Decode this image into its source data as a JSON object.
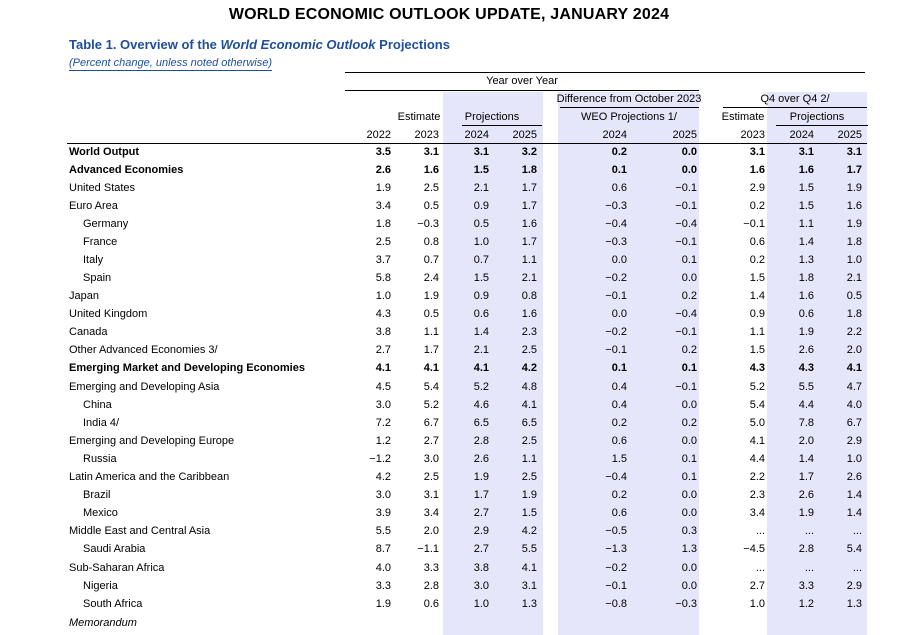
{
  "page": {
    "title": "WORLD ECONOMIC OUTLOOK UPDATE, JANUARY 2024",
    "table_title_prefix": "Table 1. Overview of the ",
    "table_title_italic": "World Economic Outlook",
    "table_title_suffix": " Projections",
    "units": "(Percent change, unless noted otherwise)"
  },
  "header": {
    "year_over_year": "Year over Year",
    "estimate": "Estimate",
    "projections": "Projections",
    "difference_line1": "Difference from October 2023",
    "difference_line2": "WEO Projections 1/",
    "q4_over_q4": "Q4 over Q4 2/",
    "q4_estimate": "Estimate",
    "q4_projections": "Projections",
    "years": [
      "2022",
      "2023",
      "2024",
      "2025",
      "2024",
      "2025",
      "2023",
      "2024",
      "2025"
    ]
  },
  "rows": [
    {
      "label": "World Output",
      "bold": true,
      "indent": false,
      "values": [
        "3.5",
        "3.1",
        "3.1",
        "3.2",
        "0.2",
        "0.0",
        "3.1",
        "3.1",
        "3.1"
      ]
    },
    {
      "label": "Advanced Economies",
      "bold": true,
      "indent": false,
      "values": [
        "2.6",
        "1.6",
        "1.5",
        "1.8",
        "0.1",
        "0.0",
        "1.6",
        "1.6",
        "1.7"
      ]
    },
    {
      "label": "United States",
      "bold": false,
      "indent": false,
      "values": [
        "1.9",
        "2.5",
        "2.1",
        "1.7",
        "0.6",
        "−0.1",
        "2.9",
        "1.5",
        "1.9"
      ]
    },
    {
      "label": "Euro Area",
      "bold": false,
      "indent": false,
      "values": [
        "3.4",
        "0.5",
        "0.9",
        "1.7",
        "−0.3",
        "−0.1",
        "0.2",
        "1.5",
        "1.6"
      ]
    },
    {
      "label": "Germany",
      "bold": false,
      "indent": true,
      "values": [
        "1.8",
        "−0.3",
        "0.5",
        "1.6",
        "−0.4",
        "−0.4",
        "−0.1",
        "1.1",
        "1.9"
      ]
    },
    {
      "label": "France",
      "bold": false,
      "indent": true,
      "values": [
        "2.5",
        "0.8",
        "1.0",
        "1.7",
        "−0.3",
        "−0.1",
        "0.6",
        "1.4",
        "1.8"
      ]
    },
    {
      "label": "Italy",
      "bold": false,
      "indent": true,
      "values": [
        "3.7",
        "0.7",
        "0.7",
        "1.1",
        "0.0",
        "0.1",
        "0.2",
        "1.3",
        "1.0"
      ]
    },
    {
      "label": "Spain",
      "bold": false,
      "indent": true,
      "values": [
        "5.8",
        "2.4",
        "1.5",
        "2.1",
        "−0.2",
        "0.0",
        "1.5",
        "1.8",
        "2.1"
      ]
    },
    {
      "label": "Japan",
      "bold": false,
      "indent": false,
      "values": [
        "1.0",
        "1.9",
        "0.9",
        "0.8",
        "−0.1",
        "0.2",
        "1.4",
        "1.6",
        "0.5"
      ]
    },
    {
      "label": "United Kingdom",
      "bold": false,
      "indent": false,
      "values": [
        "4.3",
        "0.5",
        "0.6",
        "1.6",
        "0.0",
        "−0.4",
        "0.9",
        "0.6",
        "1.8"
      ]
    },
    {
      "label": "Canada",
      "bold": false,
      "indent": false,
      "values": [
        "3.8",
        "1.1",
        "1.4",
        "2.3",
        "−0.2",
        "−0.1",
        "1.1",
        "1.9",
        "2.2"
      ]
    },
    {
      "label": "Other Advanced Economies 3/",
      "bold": false,
      "indent": false,
      "values": [
        "2.7",
        "1.7",
        "2.1",
        "2.5",
        "−0.1",
        "0.2",
        "1.5",
        "2.6",
        "2.0"
      ]
    },
    {
      "label": "Emerging Market and Developing Economies",
      "bold": true,
      "indent": false,
      "values": [
        "4.1",
        "4.1",
        "4.1",
        "4.2",
        "0.1",
        "0.1",
        "4.3",
        "4.3",
        "4.1"
      ]
    },
    {
      "label": "Emerging and Developing Asia",
      "bold": false,
      "indent": false,
      "values": [
        "4.5",
        "5.4",
        "5.2",
        "4.8",
        "0.4",
        "−0.1",
        "5.2",
        "5.5",
        "4.7"
      ]
    },
    {
      "label": "China",
      "bold": false,
      "indent": true,
      "values": [
        "3.0",
        "5.2",
        "4.6",
        "4.1",
        "0.4",
        "0.0",
        "5.4",
        "4.4",
        "4.0"
      ]
    },
    {
      "label": "India 4/",
      "bold": false,
      "indent": true,
      "values": [
        "7.2",
        "6.7",
        "6.5",
        "6.5",
        "0.2",
        "0.2",
        "5.0",
        "7.8",
        "6.7"
      ]
    },
    {
      "label": "Emerging and Developing Europe",
      "bold": false,
      "indent": false,
      "values": [
        "1.2",
        "2.7",
        "2.8",
        "2.5",
        "0.6",
        "0.0",
        "4.1",
        "2.0",
        "2.9"
      ]
    },
    {
      "label": "Russia",
      "bold": false,
      "indent": true,
      "values": [
        "−1.2",
        "3.0",
        "2.6",
        "1.1",
        "1.5",
        "0.1",
        "4.4",
        "1.4",
        "1.0"
      ]
    },
    {
      "label": "Latin America and the Caribbean",
      "bold": false,
      "indent": false,
      "values": [
        "4.2",
        "2.5",
        "1.9",
        "2.5",
        "−0.4",
        "0.1",
        "2.2",
        "1.7",
        "2.6"
      ]
    },
    {
      "label": "Brazil",
      "bold": false,
      "indent": true,
      "values": [
        "3.0",
        "3.1",
        "1.7",
        "1.9",
        "0.2",
        "0.0",
        "2.3",
        "2.6",
        "1.4"
      ]
    },
    {
      "label": "Mexico",
      "bold": false,
      "indent": true,
      "values": [
        "3.9",
        "3.4",
        "2.7",
        "1.5",
        "0.6",
        "0.0",
        "3.4",
        "1.9",
        "1.4"
      ]
    },
    {
      "label": "Middle East and Central Asia",
      "bold": false,
      "indent": false,
      "values": [
        "5.5",
        "2.0",
        "2.9",
        "4.2",
        "−0.5",
        "0.3",
        "...",
        "...",
        "..."
      ]
    },
    {
      "label": "Saudi Arabia",
      "bold": false,
      "indent": true,
      "values": [
        "8.7",
        "−1.1",
        "2.7",
        "5.5",
        "−1.3",
        "1.3",
        "−4.5",
        "2.8",
        "5.4"
      ]
    },
    {
      "label": "Sub-Saharan Africa",
      "bold": false,
      "indent": false,
      "values": [
        "4.0",
        "3.3",
        "3.8",
        "4.1",
        "−0.2",
        "0.0",
        "...",
        "...",
        "..."
      ]
    },
    {
      "label": "Nigeria",
      "bold": false,
      "indent": true,
      "values": [
        "3.3",
        "2.8",
        "3.0",
        "3.1",
        "−0.1",
        "0.0",
        "2.7",
        "3.3",
        "2.9"
      ]
    },
    {
      "label": "South Africa",
      "bold": false,
      "indent": true,
      "values": [
        "1.9",
        "0.6",
        "1.0",
        "1.3",
        "−0.8",
        "−0.3",
        "1.0",
        "1.2",
        "1.3"
      ]
    },
    {
      "label": "Memorandum",
      "bold": false,
      "indent": false,
      "memo": true,
      "values": []
    }
  ]
}
